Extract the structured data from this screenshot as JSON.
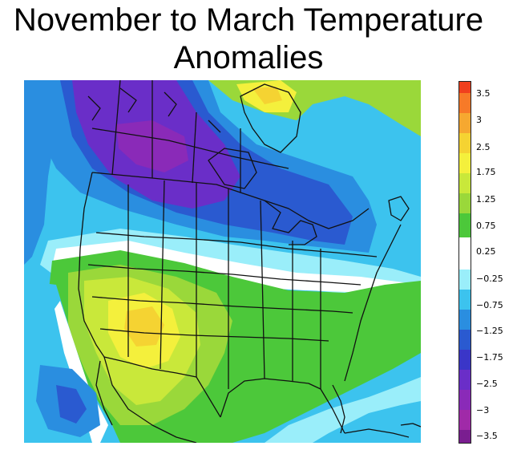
{
  "title": {
    "line1": "November to March Temperature",
    "line2": "Anomalies"
  },
  "map": {
    "region": "North America",
    "content": "temperature-anomaly-contour-map"
  },
  "colorbar": {
    "labels": [
      "3.5",
      "3",
      "2.5",
      "1.75",
      "1.25",
      "0.75",
      "0.25",
      "−0.25",
      "−0.75",
      "−1.25",
      "−1.75",
      "−2.5",
      "−3",
      "−3.5"
    ],
    "colors": [
      "#f0401e",
      "#f77a28",
      "#f6a830",
      "#f5d332",
      "#f4f03c",
      "#c9e83a",
      "#9ad83a",
      "#4cc83a",
      "#ffffff",
      "#9aeefa",
      "#3cc3ee",
      "#2a8ee0",
      "#2a5ad0",
      "#3a36c8",
      "#6a2ec8",
      "#8a2ab8",
      "#a02aa8",
      "#7a1e90"
    ]
  }
}
